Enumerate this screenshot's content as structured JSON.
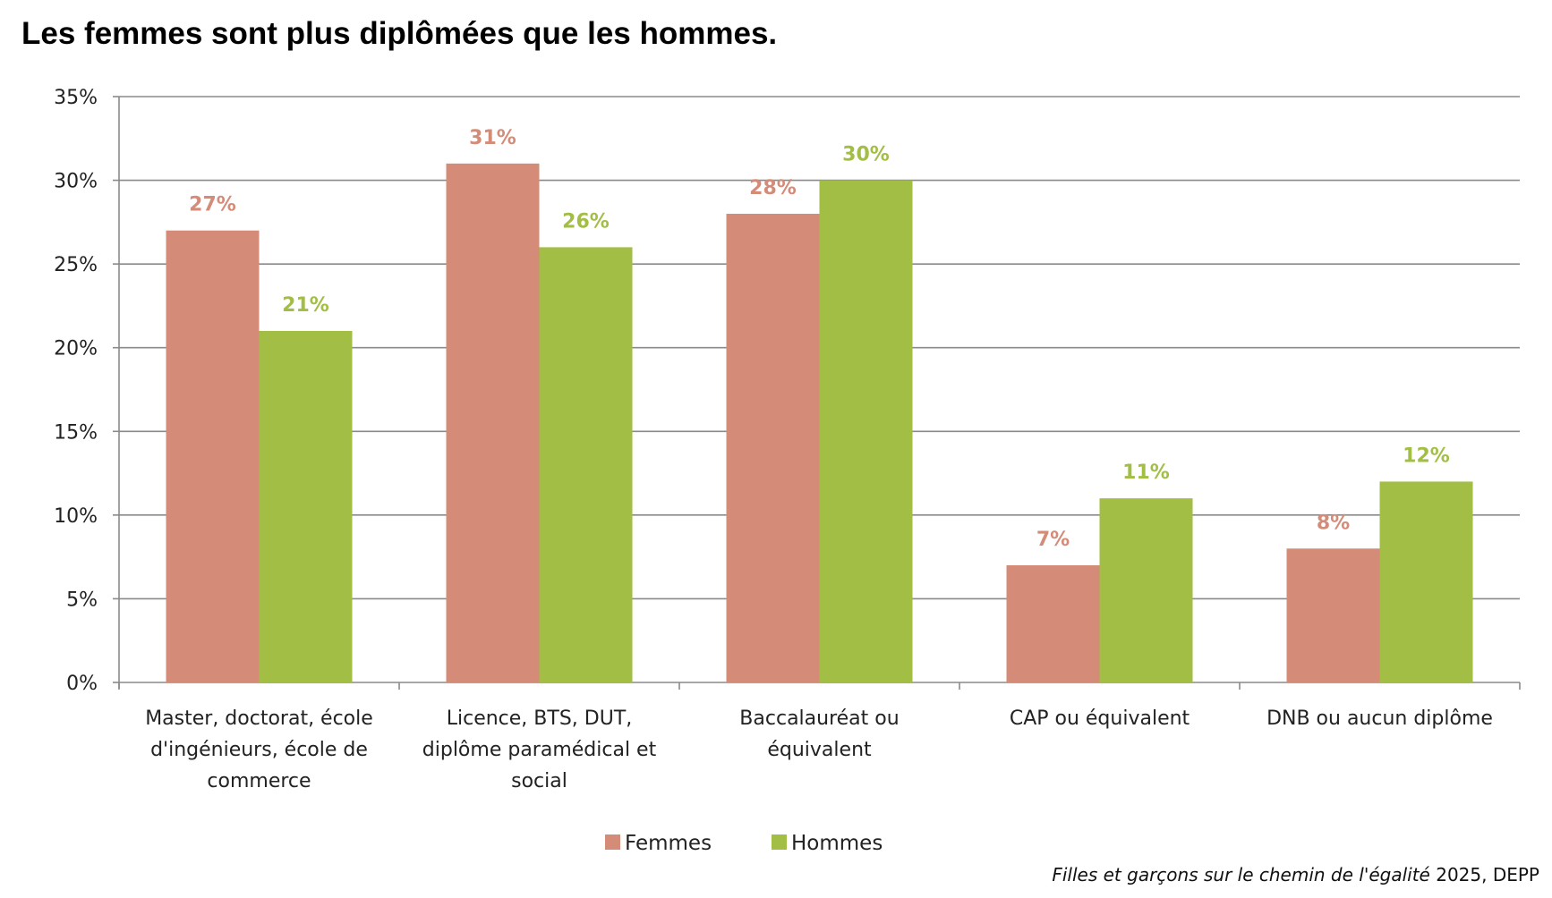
{
  "chart_data": {
    "type": "bar",
    "title": "Les femmes sont plus diplômées que les hommes.",
    "categories": [
      [
        "Master, doctorat, école",
        "d'ingénieurs, école de",
        "commerce"
      ],
      [
        "Licence, BTS, DUT,",
        "diplôme paramédical et",
        "social"
      ],
      [
        "Baccalauréat ou",
        "équivalent"
      ],
      [
        "CAP ou équivalent"
      ],
      [
        "DNB ou aucun diplôme"
      ]
    ],
    "series": [
      {
        "name": "Femmes",
        "color": "#D48C79",
        "values": [
          27,
          31,
          28,
          7,
          8
        ]
      },
      {
        "name": "Hommes",
        "color": "#A2BE44",
        "values": [
          21,
          26,
          30,
          11,
          12
        ]
      }
    ],
    "ylim": [
      0,
      35
    ],
    "yticks": [
      0,
      5,
      10,
      15,
      20,
      25,
      30,
      35
    ],
    "ytick_suffix": "%",
    "xlabel": "",
    "ylabel": "",
    "grid": true,
    "legend": "bottom-center"
  },
  "source": {
    "italic": "Filles et garçons sur le chemin de l'égalité",
    "rest": " 2025, DEPP"
  }
}
